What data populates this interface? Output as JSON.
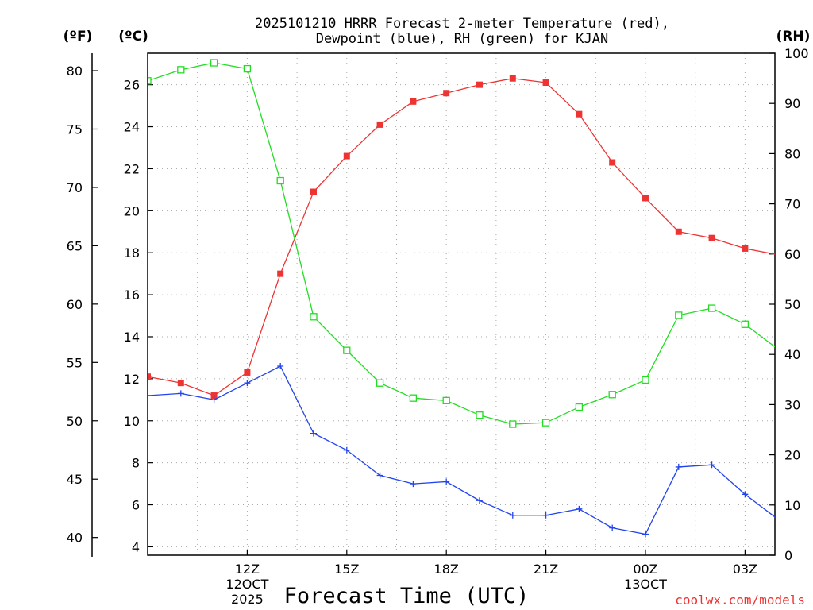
{
  "chart_data": {
    "type": "line",
    "title_lines": [
      "2025101210 HRRR Forecast 2-meter Temperature (red),",
      "Dewpoint (blue), RH (green) for KJAN"
    ],
    "left_outer_unit": "(ºF)",
    "left_inner_unit": "(ºC)",
    "right_unit": "(RH)",
    "xlabel": "Forecast Time (UTC)",
    "credit": "coolwx.com/models",
    "x_hours": [
      9,
      10,
      11,
      12,
      13,
      14,
      15,
      16,
      17,
      18,
      19,
      20,
      21,
      22,
      23,
      24,
      25,
      26,
      27,
      28
    ],
    "xlim": [
      9,
      27.9
    ],
    "x_ticks": [
      {
        "hour": 12,
        "lines": [
          "12Z",
          "12OCT",
          "2025"
        ]
      },
      {
        "hour": 15,
        "lines": [
          "15Z"
        ]
      },
      {
        "hour": 18,
        "lines": [
          "18Z"
        ]
      },
      {
        "hour": 21,
        "lines": [
          "21Z"
        ]
      },
      {
        "hour": 24,
        "lines": [
          "00Z",
          "13OCT"
        ]
      },
      {
        "hour": 27,
        "lines": [
          "03Z"
        ]
      }
    ],
    "y_celsius": {
      "lim": [
        3.6,
        27.5
      ],
      "ticks": [
        4,
        6,
        8,
        10,
        12,
        14,
        16,
        18,
        20,
        22,
        24,
        26
      ]
    },
    "y_fahrenheit": {
      "ticks": [
        40,
        45,
        50,
        55,
        60,
        65,
        70,
        75,
        80
      ]
    },
    "y_rh": {
      "lim": [
        0,
        100
      ],
      "ticks": [
        0,
        10,
        20,
        30,
        40,
        50,
        60,
        70,
        80,
        90,
        100
      ]
    },
    "series": [
      {
        "name": "Temperature",
        "axis": "celsius",
        "color": "#ee3333",
        "marker": "filled-square",
        "values": [
          12.1,
          11.8,
          11.2,
          12.3,
          17.0,
          20.9,
          22.6,
          24.1,
          25.2,
          25.6,
          26.0,
          26.3,
          26.1,
          24.6,
          22.3,
          20.6,
          19.0,
          18.7,
          18.2,
          17.9
        ]
      },
      {
        "name": "Dewpoint",
        "axis": "celsius",
        "color": "#2244ee",
        "marker": "plus",
        "values": [
          11.2,
          11.3,
          11.0,
          11.8,
          12.6,
          9.4,
          8.6,
          7.4,
          7.0,
          7.1,
          6.2,
          5.5,
          5.5,
          5.8,
          4.9,
          4.6,
          7.8,
          7.9,
          6.5,
          5.3
        ]
      },
      {
        "name": "RH",
        "axis": "rh",
        "color": "#22dd22",
        "marker": "open-square",
        "values": [
          94.5,
          96.7,
          98.1,
          96.9,
          74.6,
          47.5,
          40.8,
          34.3,
          31.3,
          30.8,
          27.9,
          26.1,
          26.4,
          29.5,
          32.0,
          34.9,
          47.8,
          49.2,
          46.0,
          41.0
        ]
      }
    ]
  }
}
